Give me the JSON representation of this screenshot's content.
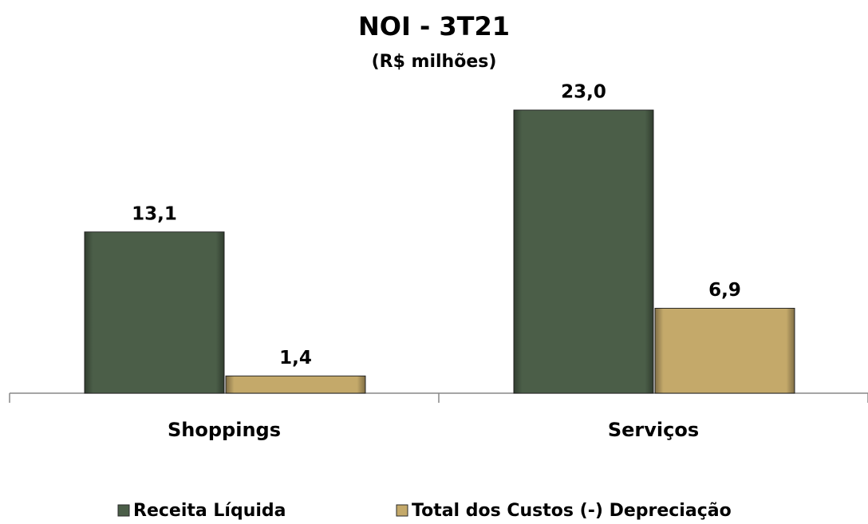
{
  "chart_data": {
    "type": "bar",
    "title": "NOI - 3T21",
    "subtitle": "(R$ milhões)",
    "categories": [
      "Shoppings",
      "Serviços"
    ],
    "series": [
      {
        "name": "Receita Líquida",
        "color": "#4b5e48",
        "values": [
          13.1,
          23.0
        ],
        "value_labels": [
          "13,1",
          "23,0"
        ]
      },
      {
        "name": "Total dos Custos (-) Depreciação",
        "color": "#c4a96a",
        "values": [
          1.4,
          6.9
        ],
        "value_labels": [
          "1,4",
          "6,9"
        ]
      }
    ]
  }
}
